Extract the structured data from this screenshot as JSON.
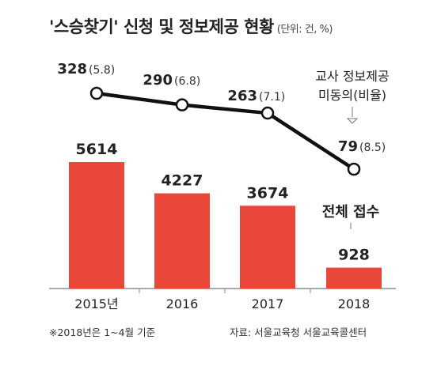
{
  "header": {
    "title": "'스승찾기' 신청 및 정보제공 현황",
    "unit": "(단위: 건, %)"
  },
  "chart_data": {
    "type": "bar",
    "title": "'스승찾기' 신청 및 정보제공 현황",
    "categories": [
      "2015년",
      "2016",
      "2017",
      "2018"
    ],
    "series": [
      {
        "name": "전체 접수",
        "type": "bar",
        "values": [
          5614,
          4227,
          3674,
          928
        ],
        "labels": [
          "5614",
          "4227",
          "3674",
          "928"
        ],
        "color": "#e8473a"
      },
      {
        "name_lines": [
          "교사 정보제공",
          "미동의(비율)"
        ],
        "type": "line",
        "values": [
          328,
          290,
          263,
          79
        ],
        "ratios": [
          5.8,
          6.8,
          7.1,
          8.5
        ],
        "counts": [
          "328",
          "290",
          "263",
          "79"
        ],
        "ratio_labels": [
          "(5.8)",
          "(6.8)",
          "(7.1)",
          "(8.5)"
        ],
        "color": "#111111"
      }
    ],
    "bar_series_label": "전체 접수",
    "line_series_label_1": "교사 정보제공",
    "line_series_label_2": "미동의(비율)"
  },
  "footer": {
    "note": "※2018년은 1~4월 기준",
    "source": "자료: 서울교육청 서울교육콜센터"
  }
}
